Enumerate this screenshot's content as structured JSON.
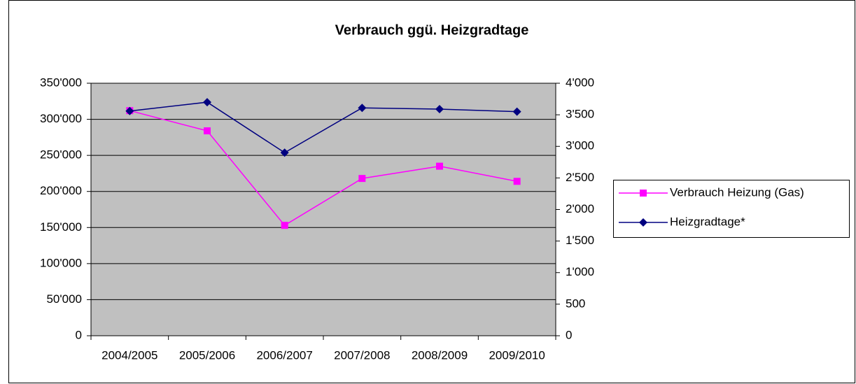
{
  "chart_data": {
    "type": "line",
    "title": "Verbrauch ggü. Heizgradtage",
    "categories": [
      "2004/2005",
      "2005/2006",
      "2006/2007",
      "2007/2008",
      "2008/2009",
      "2009/2010"
    ],
    "series": [
      {
        "name": "Verbrauch Heizung (Gas)",
        "color": "#ff00ff",
        "marker": "square",
        "values": [
          312000,
          284000,
          153000,
          218000,
          235000,
          214000
        ]
      },
      {
        "name": "Heizgradtage*",
        "color": "#000080",
        "marker": "diamond",
        "axis": "y2",
        "values": [
          3560,
          3700,
          2900,
          3610,
          3590,
          3550
        ]
      }
    ],
    "ylim": [
      0,
      350000
    ],
    "yticks": [
      0,
      {
        "value": 50000,
        "label": "50'000"
      },
      {
        "value": 100000,
        "label": "100'000"
      },
      {
        "value": 150000,
        "label": "150'000"
      },
      {
        "value": 200000,
        "label": "200'000"
      },
      {
        "value": 250000,
        "label": "250'000"
      },
      {
        "value": 300000,
        "label": "300'000"
      },
      {
        "value": 350000,
        "label": "350'000"
      }
    ],
    "y2lim": [
      0,
      4000
    ],
    "y2ticks": [
      0,
      500,
      {
        "value": 1000,
        "label": "1'000"
      },
      {
        "value": 1500,
        "label": "1'500"
      },
      {
        "value": 2000,
        "label": "2'000"
      },
      {
        "value": 2500,
        "label": "2'500"
      },
      {
        "value": 3000,
        "label": "3'000"
      },
      {
        "value": 3500,
        "label": "3'500"
      },
      {
        "value": 4000,
        "label": "4'000"
      }
    ],
    "grid": true,
    "plot_background": "#c0c0c0",
    "legend": "right"
  }
}
